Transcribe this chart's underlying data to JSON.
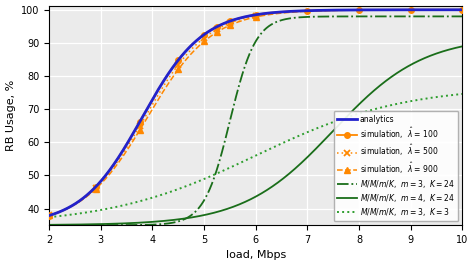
{
  "xlim": [
    2,
    10
  ],
  "ylim": [
    35,
    101
  ],
  "xlabel": "load, Mbps",
  "ylabel": "RB Usage, %",
  "yticks": [
    40,
    50,
    60,
    70,
    80,
    90,
    100
  ],
  "xticks": [
    2,
    3,
    4,
    5,
    6,
    7,
    8,
    9,
    10
  ],
  "blue_color": "#2222cc",
  "orange_color": "#ff8800",
  "green_dark_color": "#1a6e1a",
  "green_light_color": "#2e9e2e",
  "bg_color": "#ebebeb",
  "grid_color": "white",
  "legend_labels": [
    "analytics",
    "simulation,  $\\hat{\\lambda}$ = 100",
    "simulation,  $\\hat{\\lambda}$ = 500",
    "simulation,  $\\hat{\\lambda}$ = 900",
    "$M/M/m/K$,  $m = 3$,  $K = 24$",
    "$M/M/m/K$,  $m = 4$,  $K = 24$",
    "$M/M/m/K$,  $m = 3$,  $K = 3$"
  ]
}
